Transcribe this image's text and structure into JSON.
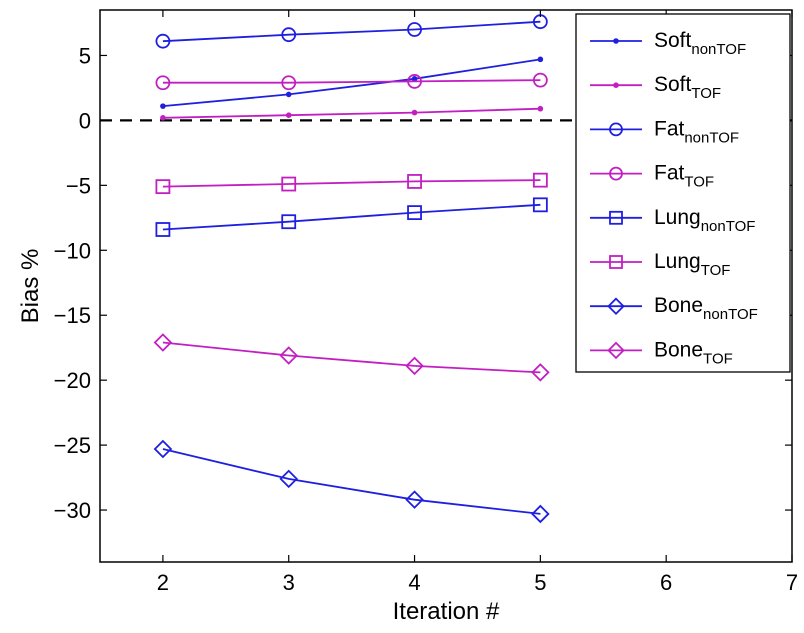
{
  "chart_data": {
    "type": "line",
    "title": "",
    "xlabel": "Iteration #",
    "ylabel": "Bias %",
    "xlim": [
      1.5,
      7
    ],
    "ylim": [
      -34,
      8.5
    ],
    "xticks": [
      2,
      3,
      4,
      5,
      6,
      7
    ],
    "yticks": [
      5,
      0,
      -5,
      -10,
      -15,
      -20,
      -25,
      -30
    ],
    "grid": false,
    "legend_position": "top-right",
    "reference_line": {
      "y": 0,
      "style": "dashed",
      "color": "#000000"
    },
    "x": [
      2,
      3,
      4,
      5
    ],
    "series": [
      {
        "name": "Soft",
        "subscript": "nonTOF",
        "color": "#1f1fe0",
        "marker": "dot",
        "values": [
          1.1,
          2.0,
          3.2,
          4.7
        ]
      },
      {
        "name": "Soft",
        "subscript": "TOF",
        "color": "#c21fc2",
        "marker": "dot",
        "values": [
          0.2,
          0.4,
          0.6,
          0.9
        ]
      },
      {
        "name": "Fat",
        "subscript": "nonTOF",
        "color": "#1f1fe0",
        "marker": "circle",
        "values": [
          6.1,
          6.6,
          7.0,
          7.6
        ]
      },
      {
        "name": "Fat",
        "subscript": "TOF",
        "color": "#c21fc2",
        "marker": "circle",
        "values": [
          2.9,
          2.9,
          3.0,
          3.1
        ]
      },
      {
        "name": "Lung",
        "subscript": "nonTOF",
        "color": "#1f1fe0",
        "marker": "square",
        "values": [
          -8.4,
          -7.8,
          -7.1,
          -6.5
        ]
      },
      {
        "name": "Lung",
        "subscript": "TOF",
        "color": "#c21fc2",
        "marker": "square",
        "values": [
          -5.1,
          -4.9,
          -4.7,
          -4.6
        ]
      },
      {
        "name": "Bone",
        "subscript": "nonTOF",
        "color": "#1f1fe0",
        "marker": "diamond",
        "values": [
          -25.3,
          -27.6,
          -29.2,
          -30.3
        ]
      },
      {
        "name": "Bone",
        "subscript": "TOF",
        "color": "#c21fc2",
        "marker": "diamond",
        "values": [
          -17.1,
          -18.1,
          -18.9,
          -19.4
        ]
      }
    ]
  }
}
